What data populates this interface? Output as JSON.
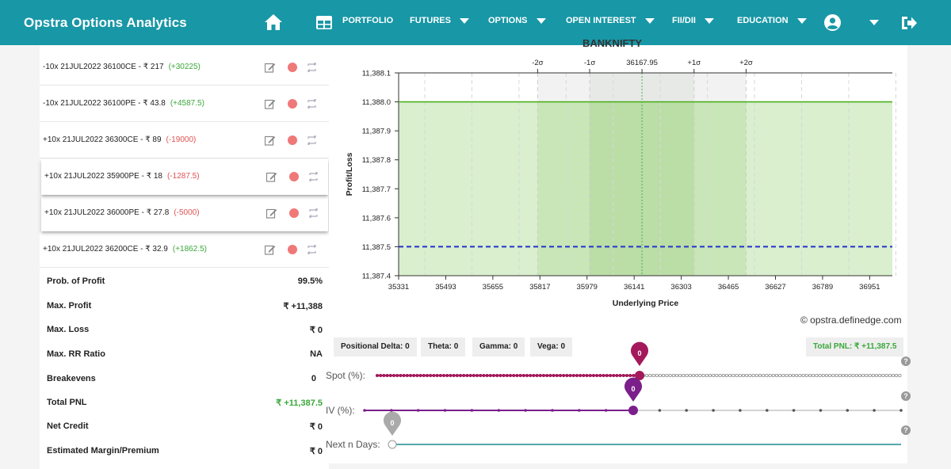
{
  "app": {
    "title": "Opstra Options Analytics"
  },
  "nav": {
    "items": [
      "PORTFOLIO",
      "FUTURES",
      "OPTIONS",
      "OPEN INTEREST",
      "FII/DII",
      "EDUCATION"
    ]
  },
  "legs": [
    {
      "text": "-10x  21JUL2022  36100CE  - ₹ 217",
      "change": "(+30225)",
      "change_color": "#3aa83a"
    },
    {
      "text": "-10x  21JUL2022  36100PE  - ₹ 43.8",
      "change": "(+4587.5)",
      "change_color": "#3aa83a"
    },
    {
      "text": "+10x  21JUL2022  36300CE  - ₹ 89",
      "change": "(-19000)",
      "change_color": "#e05252"
    },
    {
      "text": "+10x  21JUL2022  35900PE  - ₹ 18",
      "change": "(-1287.5)",
      "change_color": "#e05252"
    },
    {
      "text": "+10x  21JUL2022  36000PE  - ₹ 27.8",
      "change": "(-5000)",
      "change_color": "#e05252"
    },
    {
      "text": "+10x  21JUL2022  36200CE  - ₹ 32.9",
      "change": "(+1862.5)",
      "change_color": "#3aa83a"
    }
  ],
  "stats": [
    {
      "label": "Prob. of Profit",
      "value": "99.5%"
    },
    {
      "label": "Max. Profit",
      "value": "₹ +11,388"
    },
    {
      "label": "Max. Loss",
      "value": "₹ 0"
    },
    {
      "label": "Max. RR Ratio",
      "value": "NA"
    },
    {
      "label": "Breakevens",
      "value": "0"
    },
    {
      "label": "Total PNL",
      "value": "₹ +11,387.5"
    },
    {
      "label": "Net Credit",
      "value": "₹ 0"
    },
    {
      "label": "Estimated Margin/Premium",
      "value": "₹ 0"
    }
  ],
  "chart_data": {
    "type": "line",
    "title": "BANKNIFTY",
    "xlabel": "Underlying Price",
    "ylabel": "Profit/Loss",
    "x_ticks": [
      35331,
      35493,
      35655,
      35817,
      35979,
      36141,
      36303,
      36465,
      36627,
      36789,
      36951
    ],
    "y_ticks": [
      "11,387.4",
      "11,387.5",
      "11,387.6",
      "11,387.7",
      "11,387.8",
      "11,387.9",
      "11,388.0",
      "11,388.1"
    ],
    "ylim": [
      11387.4,
      11388.1
    ],
    "xlim": [
      35331,
      37029
    ],
    "series": [
      {
        "x": [
          35331,
          37029
        ],
        "values": [
          11388.0,
          11388.0
        ],
        "color": "#4caf1e"
      },
      {
        "x": [
          35331,
          37029
        ],
        "values": [
          11387.5,
          11387.5
        ],
        "color": "#2233cc",
        "dashed": true
      }
    ],
    "sigma_labels": [
      {
        "label": "-2σ",
        "x": 35809
      },
      {
        "label": "-1σ",
        "x": 35988
      },
      {
        "label": "36167.95",
        "x": 36167.95
      },
      {
        "label": "+1σ",
        "x": 36347
      },
      {
        "label": "+2σ",
        "x": 36526
      }
    ],
    "grid": true
  },
  "credit": "© opstra.definedge.com",
  "greeks": [
    {
      "label": "Positional Delta: 0"
    },
    {
      "label": "Theta: 0"
    },
    {
      "label": "Gamma: 0"
    },
    {
      "label": "Vega: 0"
    }
  ],
  "total_pnl": "Total PNL: ₹ +11,387.5",
  "sliders": [
    {
      "label": "Spot (%):",
      "value": "0",
      "color": "#a3195b"
    },
    {
      "label": "IV (%):",
      "value": "0",
      "color": "#7b1f8a"
    },
    {
      "label": "Next n Days:",
      "value": "0",
      "color": "#aaaaaa"
    }
  ],
  "help_glyph": "?"
}
